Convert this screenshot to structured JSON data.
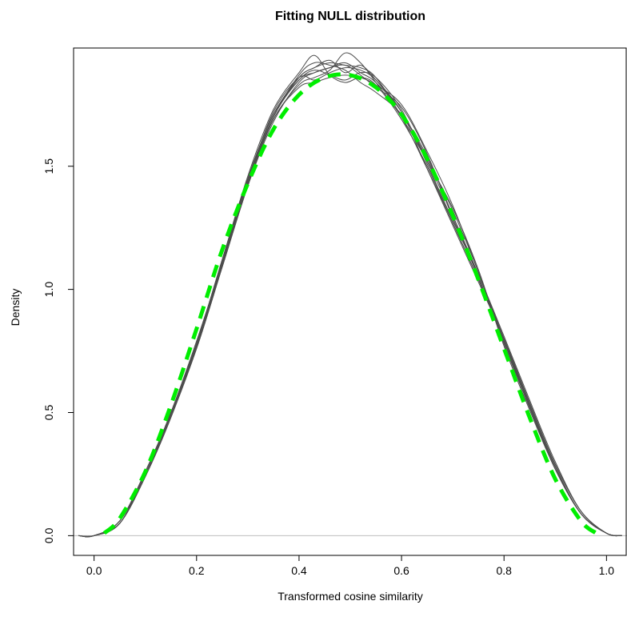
{
  "chart_data": {
    "type": "line",
    "title": "Fitting NULL distribution",
    "xlabel": "Transformed cosine similarity",
    "ylabel": "Density",
    "xlim": [
      -0.04,
      1.04
    ],
    "ylim": [
      -0.08,
      1.98
    ],
    "x_ticks": [
      0.0,
      0.2,
      0.4,
      0.6,
      0.8,
      1.0
    ],
    "x_tick_labels": [
      "0.0",
      "0.2",
      "0.4",
      "0.6",
      "0.8",
      "1.0"
    ],
    "y_ticks": [
      0.0,
      0.5,
      1.0,
      1.5
    ],
    "y_tick_labels": [
      "0.0",
      "0.5",
      "1.0",
      "1.5"
    ],
    "baseline_y": 0,
    "colors": {
      "kde": "#4d4d4d",
      "fit": "#00ee00",
      "baseline": "#bebebe"
    },
    "kde_series": [
      {
        "x": [
          -0.03,
          0.0,
          0.05,
          0.1,
          0.15,
          0.2,
          0.25,
          0.3,
          0.35,
          0.4,
          0.43,
          0.46,
          0.49,
          0.52,
          0.55,
          0.6,
          0.65,
          0.7,
          0.75,
          0.8,
          0.85,
          0.9,
          0.95,
          1.0,
          1.03
        ],
        "y": [
          0.0,
          0.0,
          0.06,
          0.25,
          0.49,
          0.77,
          1.1,
          1.44,
          1.7,
          1.86,
          1.9,
          1.93,
          1.88,
          1.91,
          1.85,
          1.72,
          1.53,
          1.32,
          1.07,
          0.78,
          0.52,
          0.27,
          0.09,
          0.01,
          0.0
        ]
      },
      {
        "x": [
          -0.03,
          0.0,
          0.05,
          0.1,
          0.15,
          0.2,
          0.25,
          0.3,
          0.35,
          0.4,
          0.43,
          0.46,
          0.49,
          0.52,
          0.55,
          0.6,
          0.65,
          0.7,
          0.75,
          0.8,
          0.85,
          0.9,
          0.95,
          1.0,
          1.03
        ],
        "y": [
          0.0,
          0.0,
          0.05,
          0.24,
          0.48,
          0.76,
          1.09,
          1.42,
          1.68,
          1.84,
          1.88,
          1.9,
          1.91,
          1.87,
          1.82,
          1.74,
          1.55,
          1.29,
          1.05,
          0.79,
          0.53,
          0.28,
          0.09,
          0.01,
          0.0
        ]
      },
      {
        "x": [
          -0.03,
          0.0,
          0.05,
          0.1,
          0.15,
          0.2,
          0.25,
          0.3,
          0.35,
          0.4,
          0.43,
          0.46,
          0.49,
          0.52,
          0.55,
          0.6,
          0.65,
          0.7,
          0.75,
          0.8,
          0.85,
          0.9,
          0.95,
          1.0,
          1.03
        ],
        "y": [
          0.0,
          0.0,
          0.06,
          0.26,
          0.5,
          0.78,
          1.12,
          1.46,
          1.73,
          1.88,
          1.95,
          1.87,
          1.84,
          1.86,
          1.83,
          1.69,
          1.5,
          1.27,
          1.04,
          0.8,
          0.54,
          0.29,
          0.1,
          0.01,
          0.0
        ]
      },
      {
        "x": [
          -0.03,
          0.0,
          0.05,
          0.1,
          0.15,
          0.2,
          0.25,
          0.3,
          0.35,
          0.4,
          0.43,
          0.46,
          0.49,
          0.52,
          0.55,
          0.6,
          0.65,
          0.7,
          0.75,
          0.8,
          0.85,
          0.9,
          0.95,
          1.0,
          1.03
        ],
        "y": [
          0.0,
          0.0,
          0.05,
          0.25,
          0.49,
          0.77,
          1.1,
          1.43,
          1.69,
          1.83,
          1.86,
          1.89,
          1.96,
          1.92,
          1.84,
          1.7,
          1.52,
          1.33,
          1.08,
          0.77,
          0.51,
          0.27,
          0.09,
          0.01,
          0.0
        ]
      },
      {
        "x": [
          -0.03,
          0.0,
          0.05,
          0.1,
          0.15,
          0.2,
          0.25,
          0.3,
          0.35,
          0.4,
          0.43,
          0.46,
          0.49,
          0.52,
          0.55,
          0.6,
          0.65,
          0.7,
          0.75,
          0.8,
          0.85,
          0.9,
          0.95,
          1.0,
          1.03
        ],
        "y": [
          0.0,
          0.0,
          0.06,
          0.25,
          0.5,
          0.79,
          1.11,
          1.45,
          1.71,
          1.85,
          1.89,
          1.87,
          1.85,
          1.88,
          1.86,
          1.73,
          1.51,
          1.28,
          1.06,
          0.81,
          0.55,
          0.3,
          0.1,
          0.01,
          0.0
        ]
      },
      {
        "x": [
          -0.03,
          0.0,
          0.05,
          0.1,
          0.15,
          0.2,
          0.25,
          0.3,
          0.35,
          0.4,
          0.43,
          0.46,
          0.49,
          0.52,
          0.55,
          0.6,
          0.65,
          0.7,
          0.75,
          0.8,
          0.85,
          0.9,
          0.95,
          1.0,
          1.03
        ],
        "y": [
          0.0,
          0.0,
          0.05,
          0.24,
          0.49,
          0.77,
          1.1,
          1.43,
          1.7,
          1.87,
          1.92,
          1.91,
          1.89,
          1.84,
          1.8,
          1.71,
          1.54,
          1.3,
          1.05,
          0.79,
          0.52,
          0.28,
          0.09,
          0.01,
          0.0
        ]
      },
      {
        "x": [
          -0.03,
          0.0,
          0.05,
          0.1,
          0.15,
          0.2,
          0.25,
          0.3,
          0.35,
          0.4,
          0.43,
          0.46,
          0.49,
          0.52,
          0.55,
          0.6,
          0.65,
          0.7,
          0.75,
          0.8,
          0.85,
          0.9,
          0.95,
          1.0,
          1.03
        ],
        "y": [
          0.0,
          0.0,
          0.06,
          0.26,
          0.5,
          0.78,
          1.11,
          1.44,
          1.72,
          1.86,
          1.85,
          1.88,
          1.9,
          1.89,
          1.85,
          1.72,
          1.49,
          1.26,
          1.03,
          0.8,
          0.54,
          0.29,
          0.1,
          0.01,
          0.0
        ]
      },
      {
        "x": [
          -0.03,
          0.0,
          0.05,
          0.1,
          0.15,
          0.2,
          0.25,
          0.3,
          0.35,
          0.4,
          0.43,
          0.46,
          0.49,
          0.52,
          0.55,
          0.6,
          0.65,
          0.7,
          0.75,
          0.8,
          0.85,
          0.9,
          0.95,
          1.0,
          1.03
        ],
        "y": [
          0.0,
          0.0,
          0.05,
          0.25,
          0.49,
          0.76,
          1.09,
          1.42,
          1.69,
          1.82,
          1.84,
          1.86,
          1.87,
          1.86,
          1.83,
          1.75,
          1.56,
          1.34,
          1.07,
          0.78,
          0.52,
          0.27,
          0.09,
          0.01,
          0.0
        ]
      },
      {
        "x": [
          -0.03,
          0.0,
          0.05,
          0.1,
          0.15,
          0.2,
          0.25,
          0.3,
          0.35,
          0.4,
          0.43,
          0.46,
          0.49,
          0.52,
          0.55,
          0.6,
          0.65,
          0.7,
          0.75,
          0.8,
          0.85,
          0.9,
          0.95,
          1.0,
          1.03
        ],
        "y": [
          0.0,
          0.0,
          0.06,
          0.25,
          0.5,
          0.78,
          1.12,
          1.45,
          1.71,
          1.86,
          1.9,
          1.92,
          1.91,
          1.9,
          1.86,
          1.7,
          1.49,
          1.27,
          1.04,
          0.79,
          0.53,
          0.28,
          0.09,
          0.01,
          0.0
        ]
      },
      {
        "x": [
          -0.03,
          0.0,
          0.05,
          0.1,
          0.15,
          0.2,
          0.25,
          0.3,
          0.35,
          0.4,
          0.43,
          0.46,
          0.49,
          0.52,
          0.55,
          0.6,
          0.65,
          0.7,
          0.75,
          0.8,
          0.85,
          0.9,
          0.95,
          1.0,
          1.03
        ],
        "y": [
          0.0,
          0.0,
          0.05,
          0.24,
          0.48,
          0.77,
          1.1,
          1.44,
          1.7,
          1.85,
          1.88,
          1.9,
          1.92,
          1.88,
          1.84,
          1.72,
          1.52,
          1.3,
          1.06,
          0.8,
          0.53,
          0.28,
          0.09,
          0.01,
          0.0
        ]
      }
    ],
    "fit_series": {
      "x": [
        0.02,
        0.05,
        0.1,
        0.15,
        0.2,
        0.25,
        0.3,
        0.35,
        0.4,
        0.45,
        0.5,
        0.55,
        0.6,
        0.65,
        0.7,
        0.75,
        0.8,
        0.85,
        0.9,
        0.95,
        0.98
      ],
      "y": [
        0.01,
        0.07,
        0.26,
        0.53,
        0.84,
        1.16,
        1.43,
        1.65,
        1.79,
        1.86,
        1.87,
        1.82,
        1.71,
        1.53,
        1.3,
        1.04,
        0.76,
        0.48,
        0.23,
        0.06,
        0.01
      ]
    }
  }
}
